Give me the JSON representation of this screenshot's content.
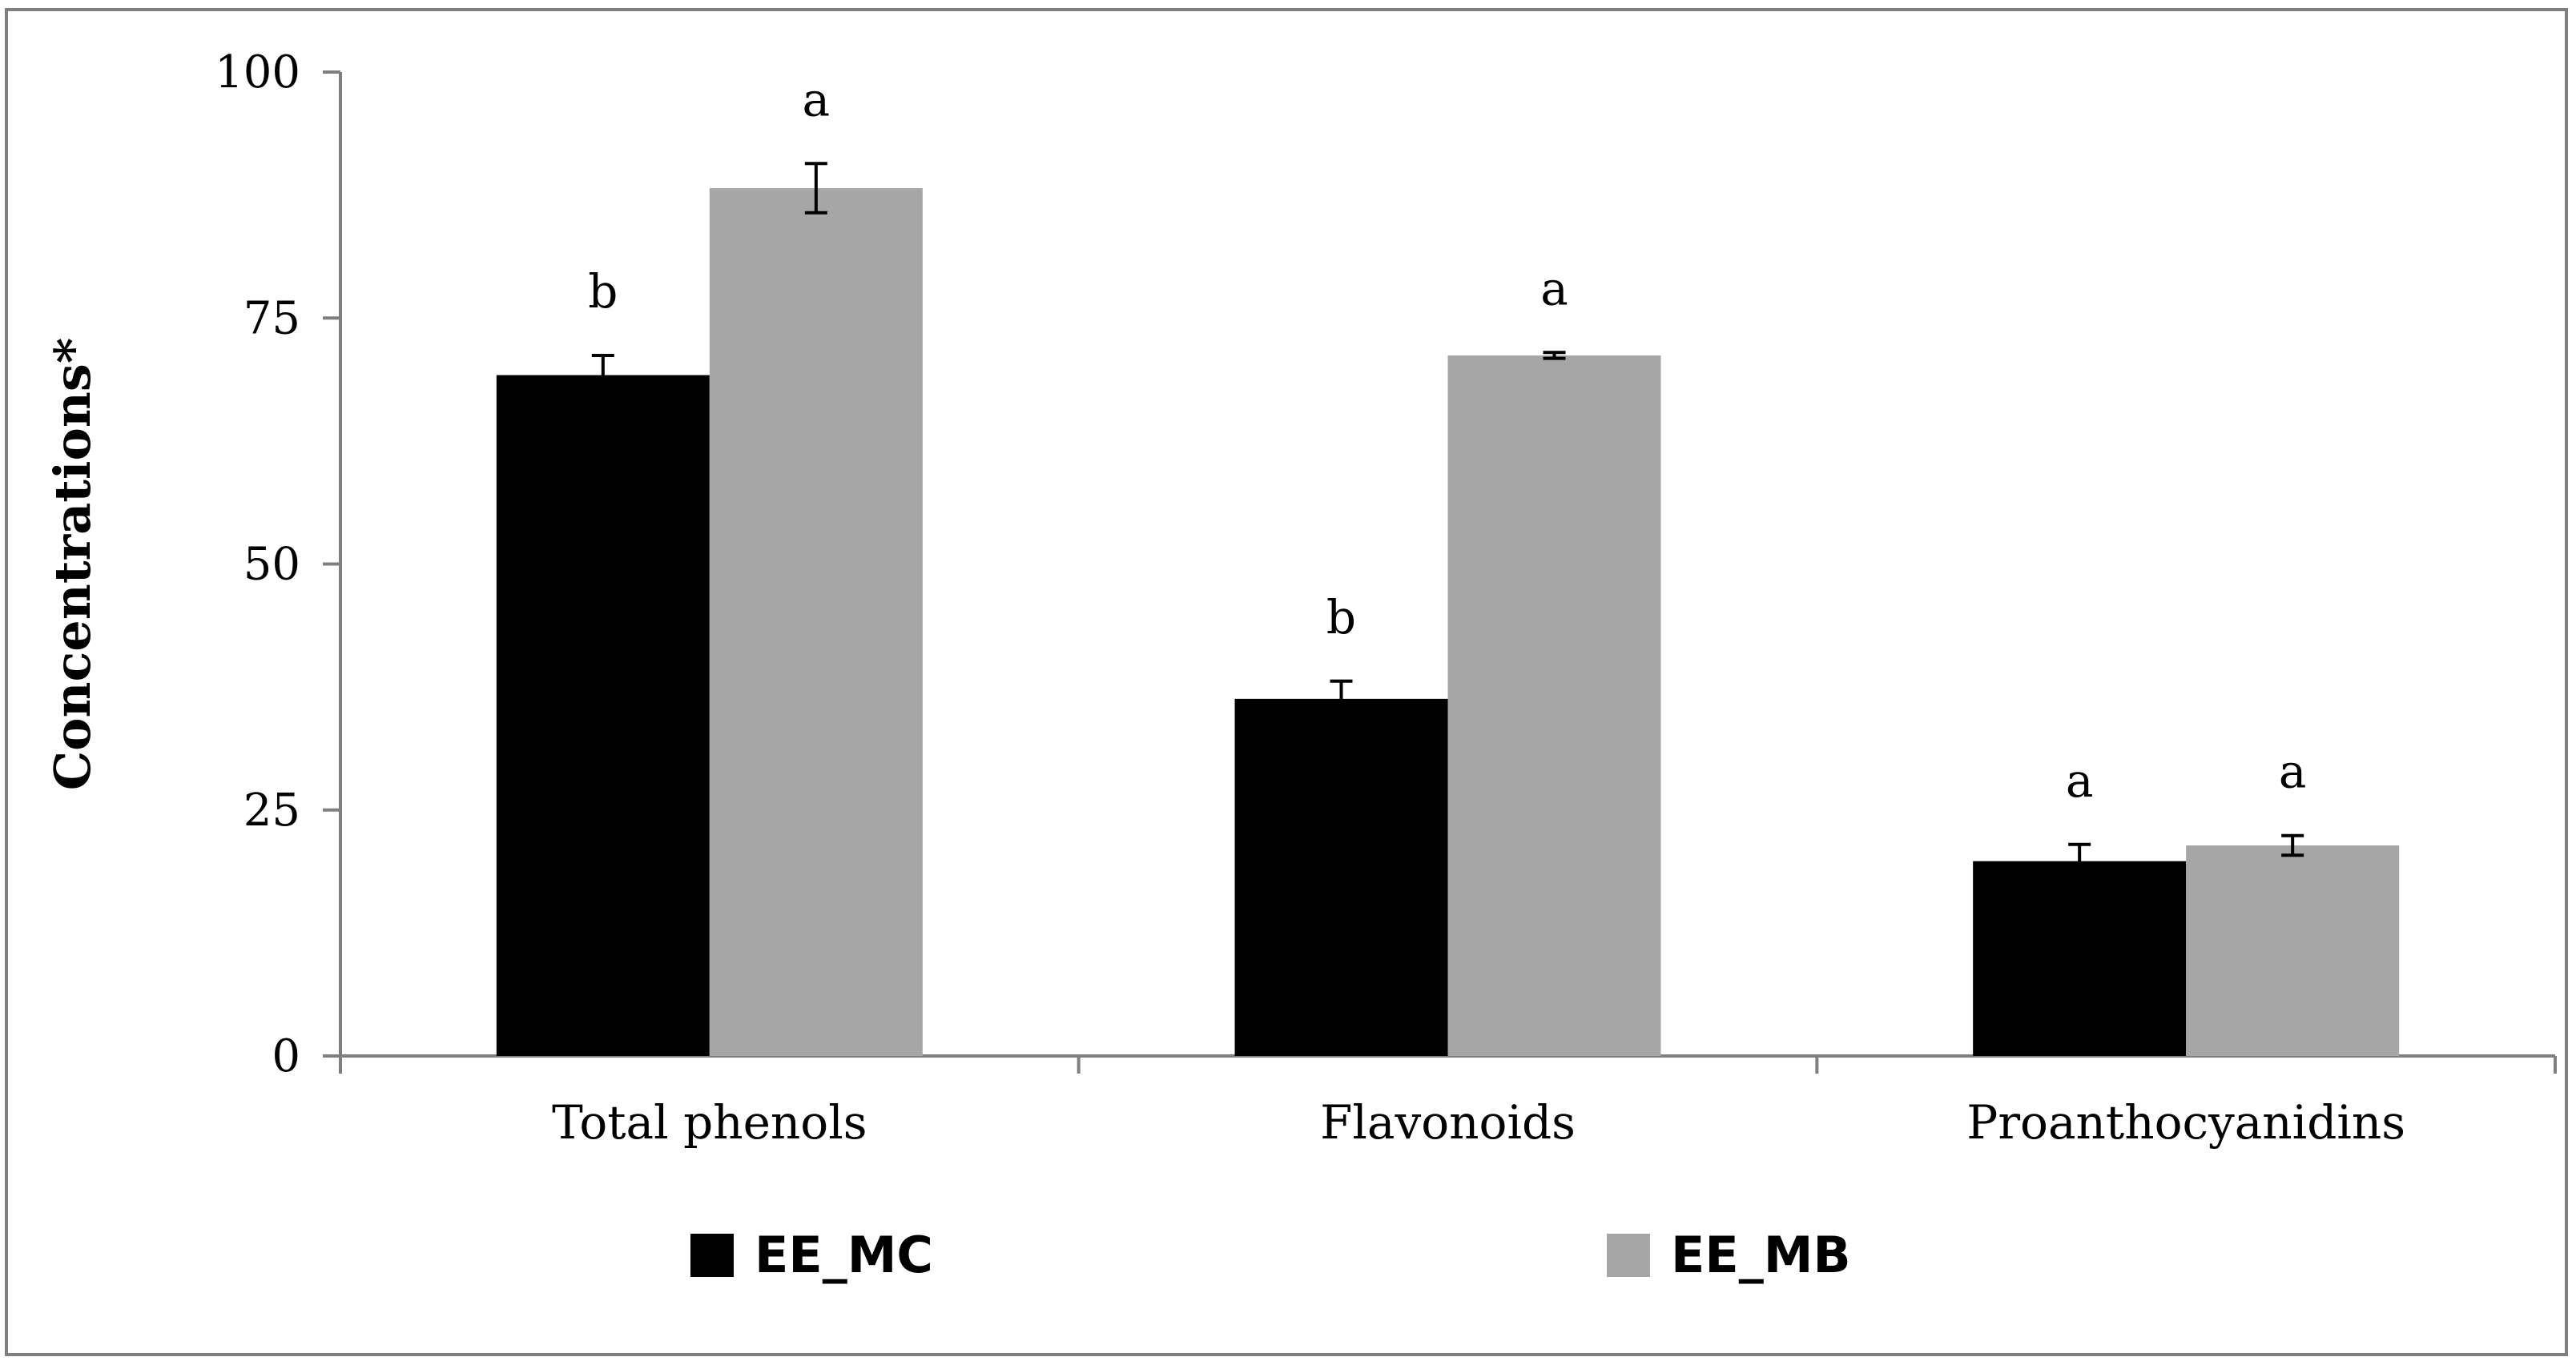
{
  "chart_data": {
    "type": "bar",
    "title": "",
    "xlabel": "",
    "ylabel": "Concentrations*",
    "ylim": [
      0,
      100
    ],
    "yticks": [
      0,
      25,
      50,
      75,
      100
    ],
    "categories": [
      "Total phenols",
      "Flavonoids",
      "Proanthocyanidins"
    ],
    "series": [
      {
        "name": "EE_MC",
        "color": "#000000",
        "values": [
          69.2,
          36.3,
          19.8
        ],
        "errors": [
          2.0,
          1.8,
          1.7
        ],
        "significance": [
          "b",
          "b",
          "a"
        ]
      },
      {
        "name": "EE_MB",
        "color": "#a6a6a6",
        "values": [
          88.2,
          71.2,
          21.4
        ],
        "errors": [
          2.5,
          0.3,
          1.0
        ],
        "significance": [
          "a",
          "a",
          "a"
        ]
      }
    ],
    "grid": false,
    "legend_position": "bottom"
  }
}
